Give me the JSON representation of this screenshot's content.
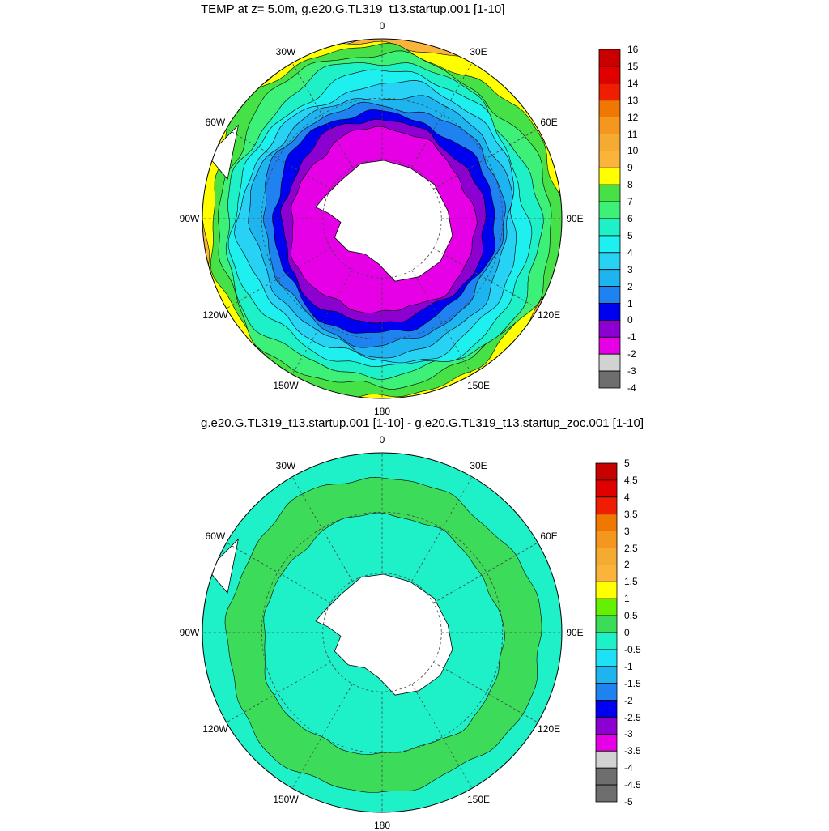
{
  "chart_data": [
    {
      "type": "heatmap",
      "projection": "south polar stereographic",
      "title": "TEMP at z=   5.0m, g.e20.G.TL319_t13.startup.001 [1-10]",
      "lon_labels": [
        "0",
        "30E",
        "60E",
        "90E",
        "120E",
        "150E",
        "180",
        "150W",
        "120W",
        "90W",
        "60W",
        "30W"
      ],
      "colorbar": {
        "labels": [
          "16",
          "15",
          "14",
          "13",
          "12",
          "11",
          "10",
          "9",
          "8",
          "7",
          "6",
          "5",
          "4",
          "3",
          "2",
          "1",
          "0",
          "-1",
          "-2",
          "-3",
          "-4"
        ],
        "colors": [
          "#c80000",
          "#e00000",
          "#f01e00",
          "#f07800",
          "#f5961e",
          "#f5aa32",
          "#fab43c",
          "#ffff00",
          "#46e146",
          "#3cf078",
          "#1ef0c8",
          "#1ef0f0",
          "#28d2f5",
          "#1eb4f0",
          "#1e82f0",
          "#0000f0",
          "#8c00d2",
          "#e600e6",
          "#d2d2d2",
          "#6e6e6e"
        ]
      },
      "rings": [
        {
          "level": "-2",
          "color": "#e600e6"
        },
        {
          "level": "-1",
          "color": "#8c00d2"
        },
        {
          "level": "0",
          "color": "#0000f0"
        },
        {
          "level": "1",
          "color": "#1e82f0"
        },
        {
          "level": "2",
          "color": "#1eb4f0"
        },
        {
          "level": "3",
          "color": "#28d2f5"
        },
        {
          "level": "4",
          "color": "#1ef0f0"
        },
        {
          "level": "5",
          "color": "#1ef0c8"
        },
        {
          "level": "6",
          "color": "#3cf078"
        },
        {
          "level": "7",
          "color": "#46e146"
        },
        {
          "level": "8",
          "color": "#ffff00"
        },
        {
          "level": "9",
          "color": "#fab43c"
        }
      ]
    },
    {
      "type": "heatmap",
      "projection": "south polar stereographic",
      "title": "g.e20.G.TL319_t13.startup.001 [1-10] - g.e20.G.TL319_t13.startup_zoc.001 [1-10]",
      "lon_labels": [
        "0",
        "30E",
        "60E",
        "90E",
        "120E",
        "150E",
        "180",
        "150W",
        "120W",
        "90W",
        "60W",
        "30W"
      ],
      "colorbar": {
        "labels": [
          "5",
          "4.5",
          "4",
          "3.5",
          "3",
          "2.5",
          "2",
          "1.5",
          "1",
          "0.5",
          "0",
          "-0.5",
          "-1",
          "-1.5",
          "-2",
          "-2.5",
          "-3",
          "-3.5",
          "-4",
          "-4.5",
          "-5"
        ],
        "colors": [
          "#c80000",
          "#e00000",
          "#f01e00",
          "#f07800",
          "#f5961e",
          "#f5aa32",
          "#fab43c",
          "#ffff00",
          "#64f000",
          "#3cdc5a",
          "#1ef0c8",
          "#1ee1f5",
          "#1eb4f0",
          "#1e82f0",
          "#0000f0",
          "#8c00d2",
          "#e600e6",
          "#d2d2d2",
          "#6e6e6e",
          "#6e6e6e"
        ]
      },
      "rings": [
        {
          "level": "-0.5",
          "color": "#1ef0c8"
        },
        {
          "level": "0.5",
          "color": "#3cdc5a"
        },
        {
          "level": "-0.5",
          "color": "#1ef0c8"
        }
      ]
    }
  ]
}
